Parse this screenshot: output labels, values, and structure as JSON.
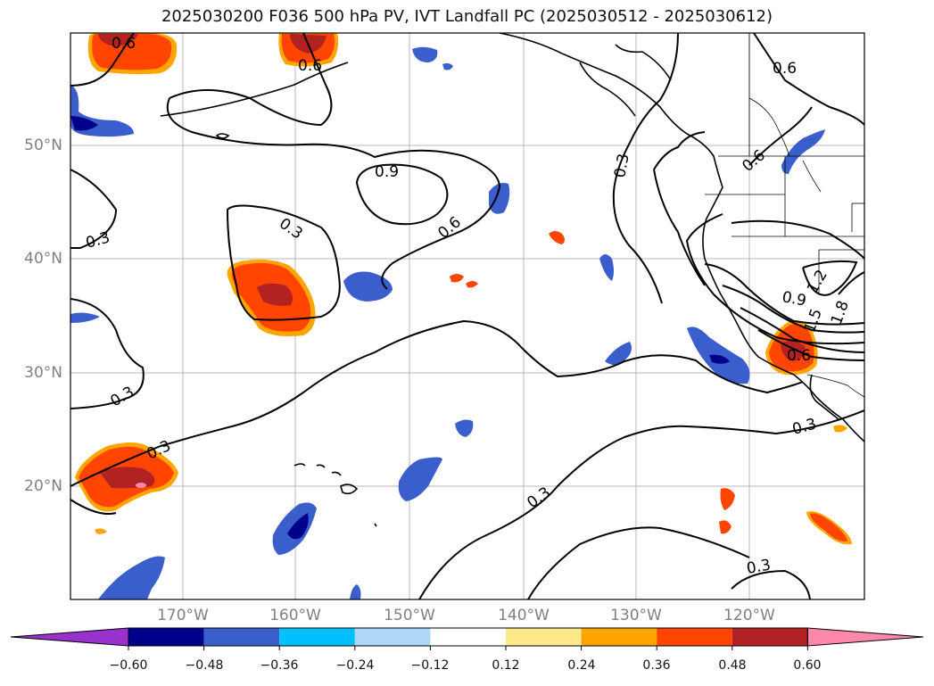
{
  "title": "2025030200 F036 500 hPa PV, IVT Landfall PC (2025030512 - 2025030612)",
  "map": {
    "lat_labels": [
      "50°N",
      "40°N",
      "30°N",
      "20°N"
    ],
    "lon_labels": [
      "170°W",
      "160°W",
      "150°W",
      "140°W",
      "130°W",
      "120°W"
    ],
    "contour_labels": [
      "0.6",
      "0.6",
      "0.6",
      "0.9",
      "0.3",
      "0.6",
      "0.3",
      "0.3",
      "0.3",
      "0.3",
      "0.3",
      "0.3",
      "0.6",
      "0.9",
      "1.2",
      "1.5",
      "1.8",
      "0.6",
      "0.3"
    ],
    "colors": {
      "neg_dark": "#00008b",
      "neg_mid": "#3a5fcd",
      "neg_light": "#00bfff",
      "neg_pale": "#add8f5",
      "pos_pale": "#ffe88a",
      "pos_orange": "#ffa500",
      "pos_red": "#ff4500",
      "pos_dark": "#b22222",
      "pos_pink": "#ff88aa",
      "contour": "#000000",
      "grid": "#b0b0b0",
      "coast": "#000000"
    }
  },
  "colorbar": {
    "ticks": [
      "−0.60",
      "−0.48",
      "−0.36",
      "−0.24",
      "−0.12",
      "0.12",
      "0.24",
      "0.36",
      "0.48",
      "0.60"
    ],
    "colors": [
      "#9932cc",
      "#00008b",
      "#3a5fcd",
      "#00bfff",
      "#add8f5",
      "#ffffff",
      "#ffe88a",
      "#ffa500",
      "#ff4500",
      "#b22222",
      "#ff88aa"
    ]
  }
}
